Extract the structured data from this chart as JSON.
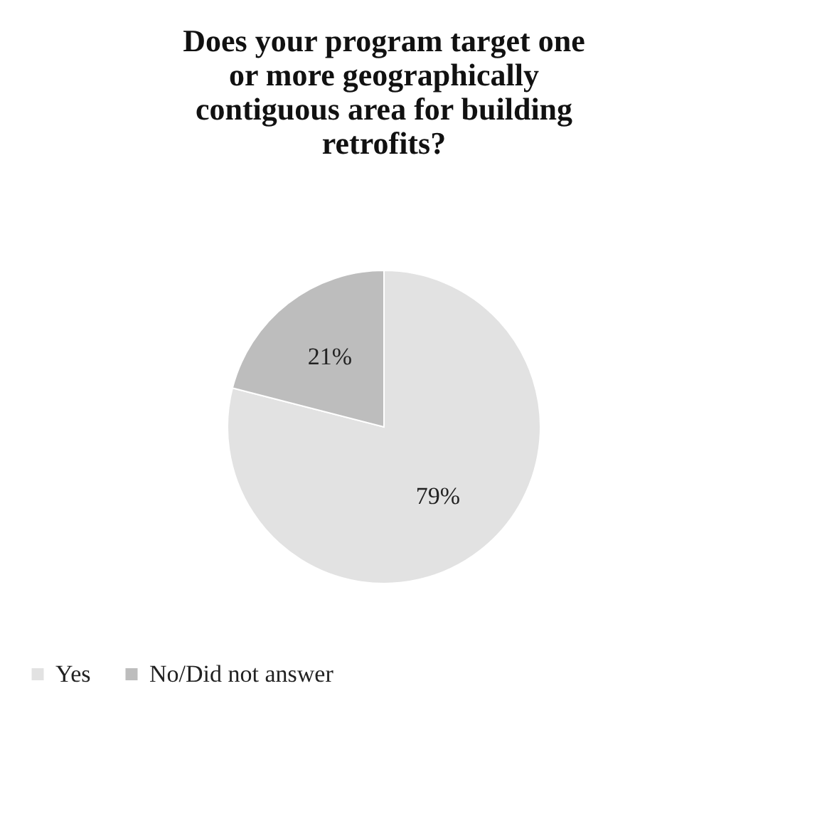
{
  "chart_data": {
    "type": "pie",
    "title": "Does your program target one or more geographically contiguous area for building retrofits?",
    "categories": [
      "Yes",
      "No/Did not answer"
    ],
    "values": [
      79,
      21
    ],
    "colors": [
      "#e2e2e2",
      "#bdbdbd"
    ],
    "value_labels": [
      "79%",
      "21%"
    ],
    "legend": "bottom"
  }
}
